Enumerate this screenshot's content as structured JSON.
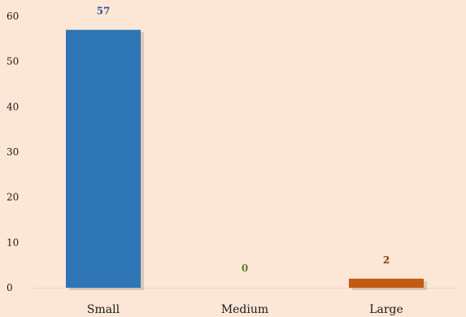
{
  "chart_data": {
    "type": "bar",
    "title": "",
    "xlabel": "",
    "ylabel": "",
    "categories": [
      "Small",
      "Medium",
      "Large"
    ],
    "values": [
      57,
      0,
      2
    ],
    "colors": [
      "#2e75b6",
      "#70ad47",
      "#c55a11"
    ],
    "label_colors": [
      "#2f5597",
      "#548235",
      "#843c0c"
    ],
    "background": "#fce6d6",
    "ylim": [
      0,
      60
    ],
    "yticks": [
      0,
      10,
      20,
      30,
      40,
      50,
      60
    ],
    "grid": false,
    "legend": "none"
  }
}
